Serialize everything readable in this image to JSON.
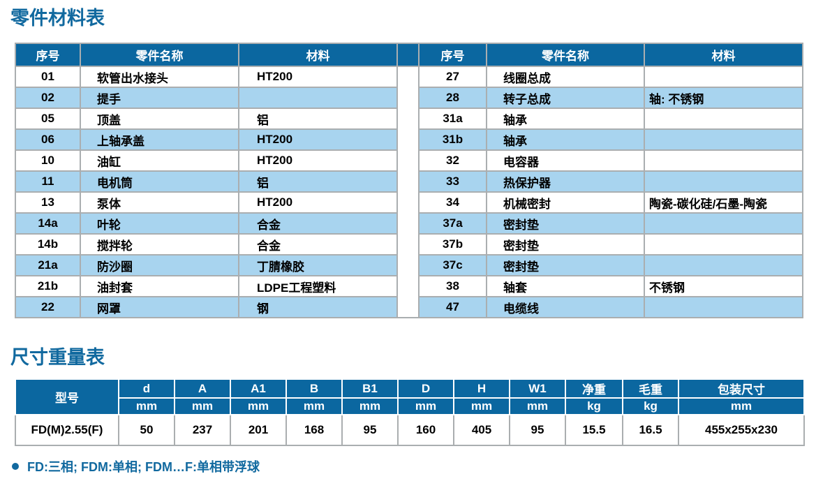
{
  "page": {
    "parts_title": "零件材料表",
    "size_title": "尺寸重量表",
    "footnote": "FD:三相; FDM:单相; FDM…F:单相带浮球"
  },
  "colors": {
    "table_header_bg": "#0b67a0",
    "row_stripe_blue": "#a8d4ef",
    "border_gray": "#aaaeb0",
    "title_blue": "#11699f",
    "header_text": "#ffffff",
    "body_text": "#000000"
  },
  "parts_table": {
    "headers": {
      "no": "序号",
      "name": "零件名称",
      "material": "材料"
    },
    "left_rows": [
      {
        "no": "01",
        "name": "软管出水接头",
        "material": "HT200"
      },
      {
        "no": "02",
        "name": "提手",
        "material": ""
      },
      {
        "no": "05",
        "name": "顶盖",
        "material": "铝"
      },
      {
        "no": "06",
        "name": "上轴承盖",
        "material": "HT200"
      },
      {
        "no": "10",
        "name": "油缸",
        "material": "HT200"
      },
      {
        "no": "11",
        "name": "电机筒",
        "material": "铝"
      },
      {
        "no": "13",
        "name": "泵体",
        "material": "HT200"
      },
      {
        "no": "14a",
        "name": "叶轮",
        "material": "合金"
      },
      {
        "no": "14b",
        "name": "搅拌轮",
        "material": "合金"
      },
      {
        "no": "21a",
        "name": "防沙圈",
        "material": "丁腈橡胶"
      },
      {
        "no": "21b",
        "name": "油封套",
        "material": "LDPE工程塑料"
      },
      {
        "no": "22",
        "name": "网罩",
        "material": "钢"
      }
    ],
    "right_rows": [
      {
        "no": "27",
        "name": "线圈总成",
        "material": ""
      },
      {
        "no": "28",
        "name": "转子总成",
        "material": "轴: 不锈钢"
      },
      {
        "no": "31a",
        "name": "轴承",
        "material": ""
      },
      {
        "no": "31b",
        "name": "轴承",
        "material": ""
      },
      {
        "no": "32",
        "name": "电容器",
        "material": ""
      },
      {
        "no": "33",
        "name": "热保护器",
        "material": ""
      },
      {
        "no": "34",
        "name": "机械密封",
        "material": "陶瓷-碳化硅/石墨-陶瓷"
      },
      {
        "no": "37a",
        "name": "密封垫",
        "material": ""
      },
      {
        "no": "37b",
        "name": "密封垫",
        "material": ""
      },
      {
        "no": "37c",
        "name": "密封垫",
        "material": ""
      },
      {
        "no": "38",
        "name": "轴套",
        "material": "不锈钢"
      },
      {
        "no": "47",
        "name": "电缆线",
        "material": ""
      }
    ]
  },
  "size_table": {
    "model_header": "型号",
    "columns": [
      {
        "label": "d",
        "unit": "mm"
      },
      {
        "label": "A",
        "unit": "mm"
      },
      {
        "label": "A1",
        "unit": "mm"
      },
      {
        "label": "B",
        "unit": "mm"
      },
      {
        "label": "B1",
        "unit": "mm"
      },
      {
        "label": "D",
        "unit": "mm"
      },
      {
        "label": "H",
        "unit": "mm"
      },
      {
        "label": "W1",
        "unit": "mm"
      },
      {
        "label": "净重",
        "unit": "kg"
      },
      {
        "label": "毛重",
        "unit": "kg"
      },
      {
        "label": "包装尺寸",
        "unit": "mm"
      }
    ],
    "rows": [
      {
        "model": "FD(M)2.55(F)",
        "values": [
          "50",
          "237",
          "201",
          "168",
          "95",
          "160",
          "405",
          "95",
          "15.5",
          "16.5",
          "455x255x230"
        ]
      }
    ]
  }
}
